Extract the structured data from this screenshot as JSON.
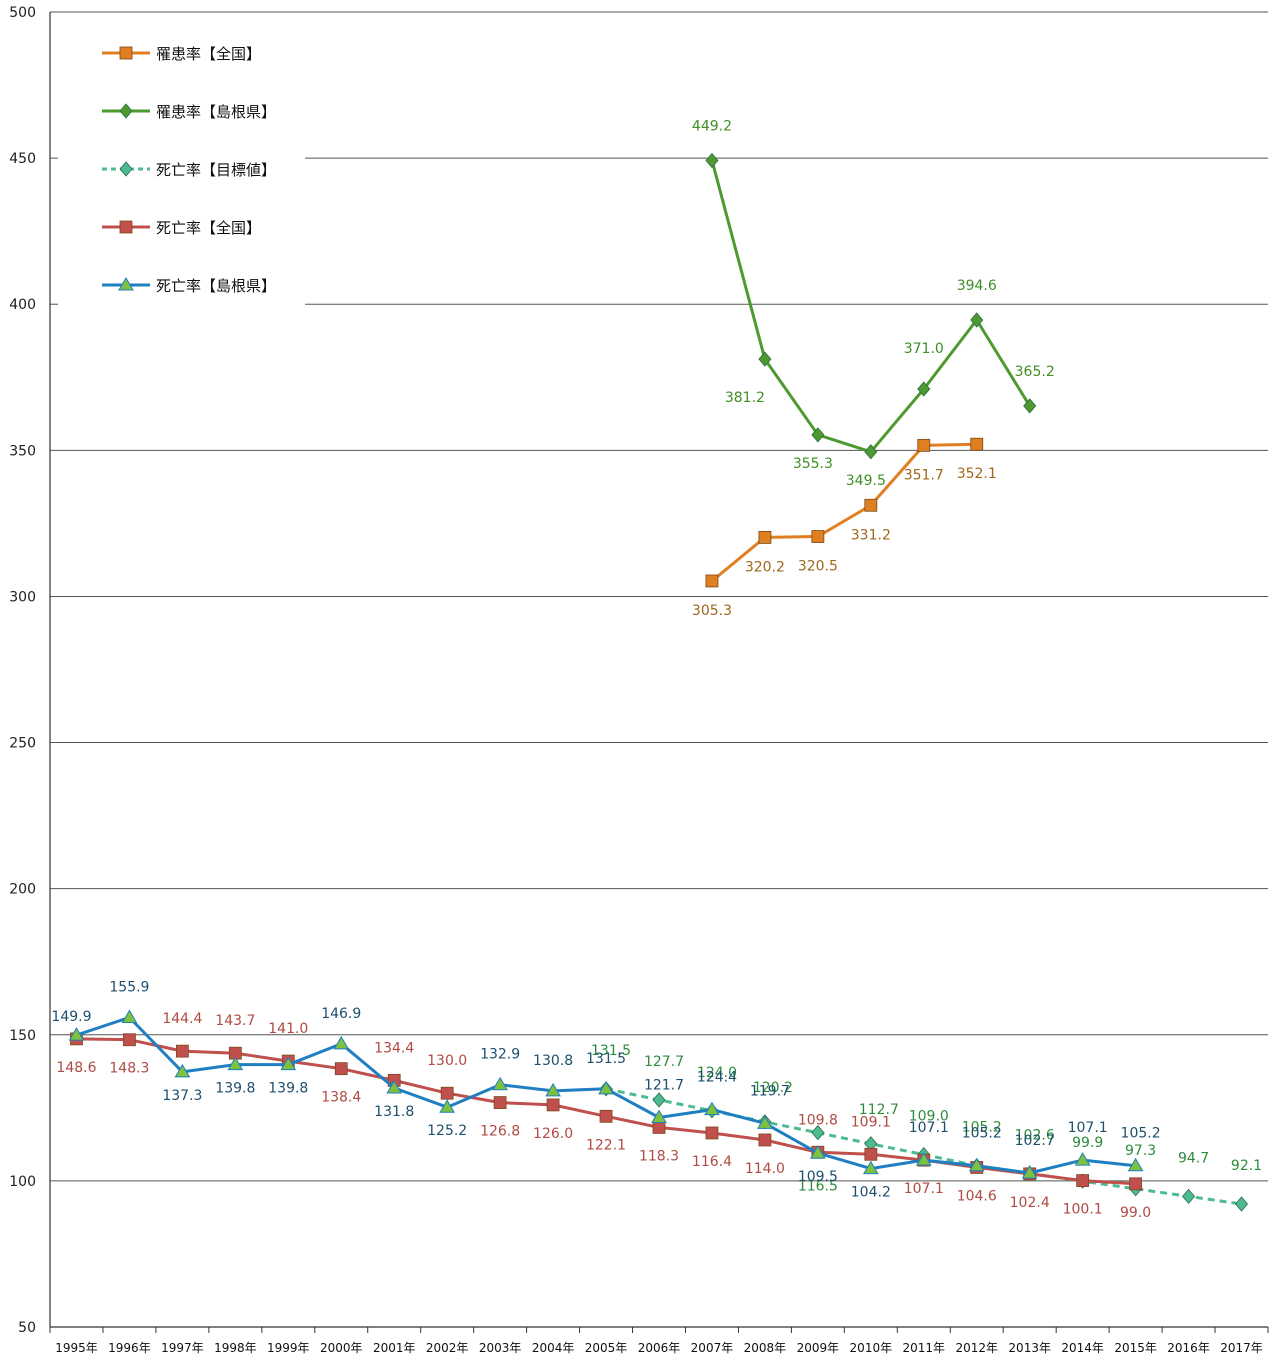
{
  "chart_data": {
    "type": "line",
    "categories": [
      "1995年",
      "1996年",
      "1997年",
      "1998年",
      "1999年",
      "2000年",
      "2001年",
      "2002年",
      "2003年",
      "2004年",
      "2005年",
      "2006年",
      "2007年",
      "2008年",
      "2009年",
      "2010年",
      "2011年",
      "2012年",
      "2013年",
      "2014年",
      "2015年",
      "2016年",
      "2017年"
    ],
    "ylim": [
      50,
      500
    ],
    "yticks": [
      "50",
      "100",
      "150",
      "200",
      "250",
      "300",
      "350",
      "400",
      "450",
      "500"
    ],
    "grid": true,
    "legend_position": "top-left",
    "series": [
      {
        "name": "罹患率【全国】",
        "color": "#e07f1f",
        "marker": "square",
        "dashed": false,
        "values": [
          null,
          null,
          null,
          null,
          null,
          null,
          null,
          null,
          null,
          null,
          null,
          null,
          305.3,
          320.2,
          320.5,
          331.2,
          351.7,
          352.1,
          null,
          null,
          null,
          null,
          null
        ],
        "labels": [
          null,
          null,
          null,
          null,
          null,
          null,
          null,
          null,
          null,
          null,
          null,
          null,
          "305.3",
          "320.2",
          "320.5",
          "331.2",
          "351.7",
          "352.1",
          null,
          null,
          null,
          null,
          null
        ]
      },
      {
        "name": "罹患率【島根県】",
        "color": "#4e9a2f",
        "marker": "diamond",
        "dashed": false,
        "values": [
          null,
          null,
          null,
          null,
          null,
          null,
          null,
          null,
          null,
          null,
          null,
          null,
          449.2,
          381.2,
          355.3,
          349.5,
          371.0,
          394.6,
          365.2,
          null,
          null,
          null,
          null
        ],
        "labels": [
          null,
          null,
          null,
          null,
          null,
          null,
          null,
          null,
          null,
          null,
          null,
          null,
          "449.2",
          "381.2",
          "355.3",
          "349.5",
          "371.0",
          "394.6",
          "365.2",
          null,
          null,
          null,
          null
        ]
      },
      {
        "name": "死亡率【目標値】",
        "color": "#4dbb8f",
        "marker": "diamond",
        "dashed": true,
        "values": [
          null,
          null,
          null,
          null,
          null,
          null,
          null,
          null,
          null,
          null,
          131.5,
          127.7,
          124.0,
          120.2,
          116.5,
          112.7,
          109.0,
          105.2,
          102.6,
          99.9,
          97.3,
          94.7,
          92.1
        ],
        "labels": [
          null,
          null,
          null,
          null,
          null,
          null,
          null,
          null,
          null,
          null,
          "131.5",
          "127.7",
          "124.0",
          "120.2",
          "116.5",
          "112.7",
          "109.0",
          "105.2",
          "102.6",
          "99.9",
          "97.3",
          "94.7",
          "92.1"
        ]
      },
      {
        "name": "死亡率【全国】",
        "color": "#c0504d",
        "marker": "square",
        "dashed": false,
        "values": [
          148.6,
          148.3,
          144.4,
          143.7,
          141.0,
          138.4,
          134.4,
          130.0,
          126.8,
          126.0,
          122.1,
          118.3,
          116.4,
          114.0,
          109.8,
          109.1,
          107.1,
          104.6,
          102.4,
          100.1,
          99.0,
          null,
          null
        ],
        "labels": [
          "148.6",
          "148.3",
          "144.4",
          "143.7",
          "141.0",
          "138.4",
          "134.4",
          "130.0",
          "126.8",
          "126.0",
          "122.1",
          "118.3",
          "116.4",
          "114.0",
          "109.8",
          "109.1",
          "107.1",
          "104.6",
          "102.4",
          "100.1",
          "99.0",
          null,
          null
        ]
      },
      {
        "name": "死亡率【島根県】",
        "color": "#1f7fc0",
        "marker": "triangle",
        "dashed": false,
        "values": [
          149.9,
          155.9,
          137.3,
          139.8,
          139.8,
          146.9,
          131.8,
          125.2,
          132.9,
          130.8,
          131.5,
          121.7,
          124.4,
          119.7,
          109.5,
          104.2,
          107.1,
          105.2,
          102.7,
          107.1,
          105.2,
          null,
          null
        ],
        "labels": [
          "149.9",
          "155.9",
          "137.3",
          "139.8",
          "139.8",
          "146.9",
          "131.8",
          "125.2",
          "132.9",
          "130.8",
          "131.5",
          "121.7",
          "124.4",
          "119.7",
          "109.5",
          "104.2",
          "107.1",
          "105.2",
          "102.7",
          "107.1",
          "105.2",
          null,
          null
        ]
      }
    ]
  }
}
